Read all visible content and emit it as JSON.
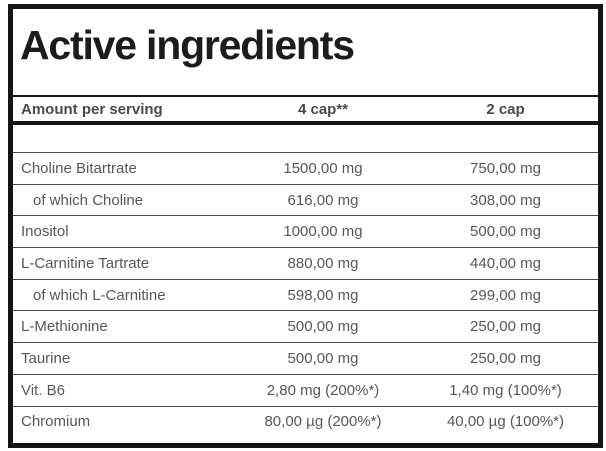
{
  "title": "Active ingredients",
  "colors": {
    "frame_border": "#141414",
    "title_text": "#1c1c1c",
    "header_text": "#4a4a4a",
    "row_text": "#575757",
    "row_separator": "#4d4d4d",
    "background": "#ffffff"
  },
  "table": {
    "header": {
      "col1": "Amount per serving",
      "col2": "4 cap**",
      "col3": "2 cap"
    },
    "rows": [
      {
        "label": "Choline Bitartrate",
        "v4": "1500,00 mg",
        "v2": "750,00 mg",
        "indent": false
      },
      {
        "label": "of which Choline",
        "v4": "616,00 mg",
        "v2": "308,00 mg",
        "indent": true
      },
      {
        "label": "Inositol",
        "v4": "1000,00 mg",
        "v2": "500,00 mg",
        "indent": false
      },
      {
        "label": "L-Carnitine Tartrate",
        "v4": "880,00 mg",
        "v2": "440,00 mg",
        "indent": false
      },
      {
        "label": "of which L-Carnitine",
        "v4": "598,00 mg",
        "v2": "299,00 mg",
        "indent": true
      },
      {
        "label": "L-Methionine",
        "v4": "500,00 mg",
        "v2": "250,00 mg",
        "indent": false
      },
      {
        "label": "Taurine",
        "v4": "500,00 mg",
        "v2": "250,00 mg",
        "indent": false
      },
      {
        "label": "Vit. B6",
        "v4": "2,80 mg (200%*)",
        "v2": "1,40 mg (100%*)",
        "indent": false
      },
      {
        "label": "Chromium",
        "v4": "80,00 µg (200%*)",
        "v2": "40,00 µg (100%*)",
        "indent": false
      }
    ]
  }
}
